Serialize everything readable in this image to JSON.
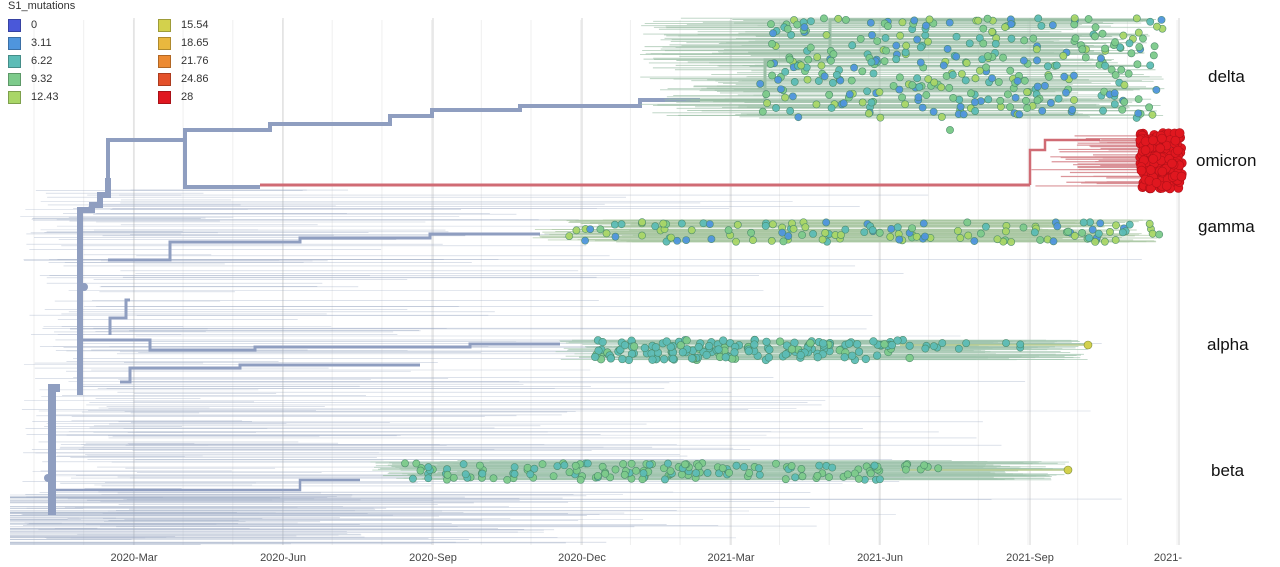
{
  "legend": {
    "title": "S1_mutations",
    "items": [
      {
        "label": "0",
        "color": "#4a58d9"
      },
      {
        "label": "3.11",
        "color": "#4f95dd"
      },
      {
        "label": "6.22",
        "color": "#5cbcb6"
      },
      {
        "label": "9.32",
        "color": "#7dcb8b"
      },
      {
        "label": "12.43",
        "color": "#a9d667"
      },
      {
        "label": "15.54",
        "color": "#d3d14c"
      },
      {
        "label": "18.65",
        "color": "#e9b83e"
      },
      {
        "label": "21.76",
        "color": "#ec8a32"
      },
      {
        "label": "24.86",
        "color": "#e4512a"
      },
      {
        "label": "28",
        "color": "#e0171f"
      }
    ]
  },
  "clades": [
    {
      "name": "delta"
    },
    {
      "name": "omicron"
    },
    {
      "name": "gamma"
    },
    {
      "name": "alpha"
    },
    {
      "name": "beta"
    }
  ],
  "axis": {
    "ticks": [
      "2020-Mar",
      "2020-Jun",
      "2020-Sep",
      "2020-Dec",
      "2021-Mar",
      "2021-Jun",
      "2021-Sep",
      "2021-"
    ]
  },
  "colors": {
    "backbone": "#8f9ec0",
    "branch_grey": "#9aa8c2",
    "grid": "#e6e6e6"
  }
}
